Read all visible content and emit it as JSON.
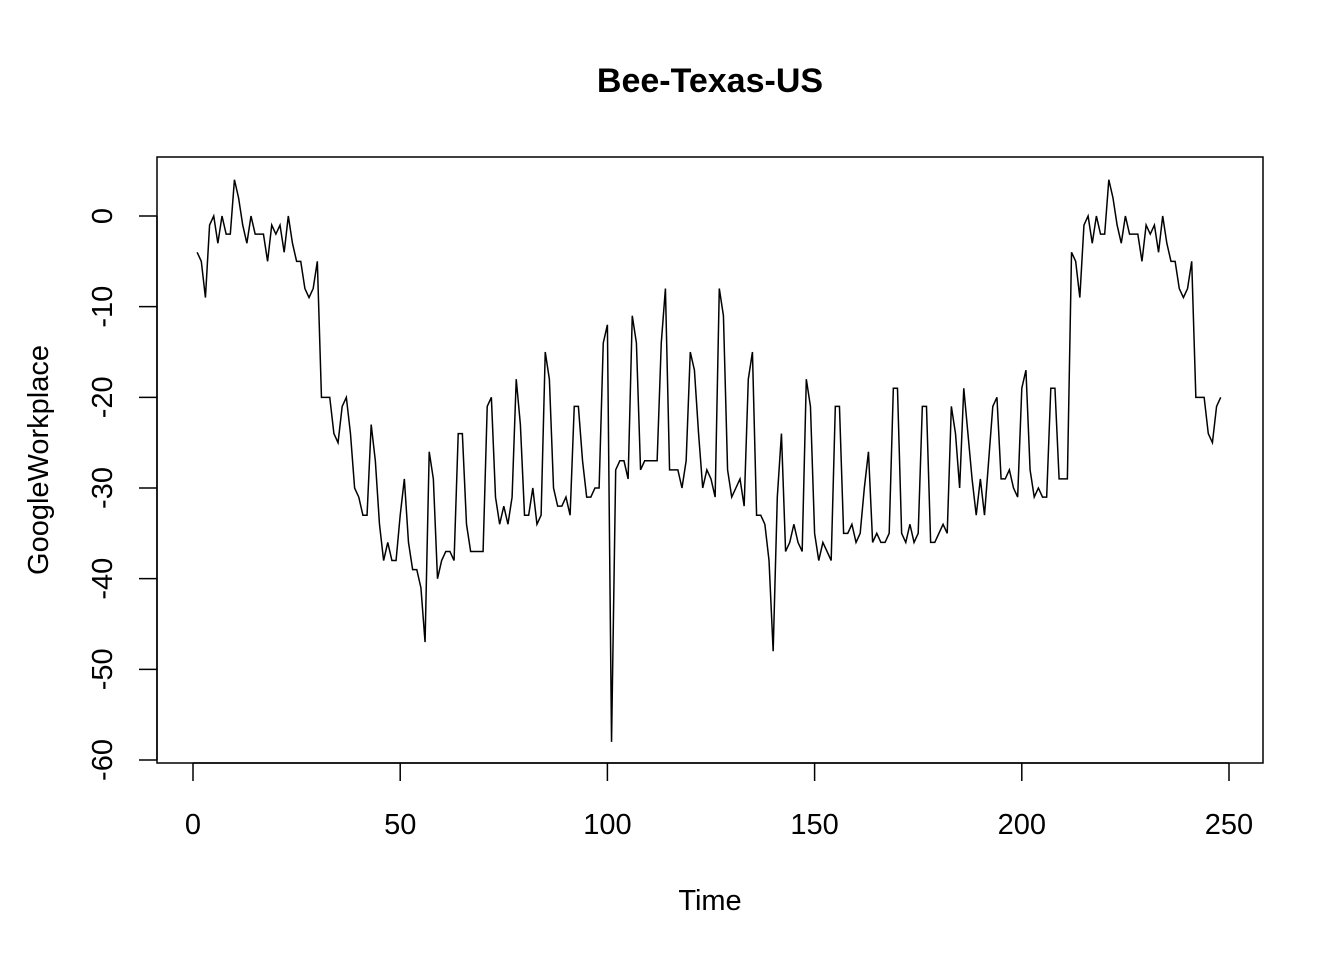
{
  "chart_data": {
    "type": "line",
    "title": "Bee-Texas-US",
    "xlabel": "Time",
    "ylabel": "GoogleWorkplace",
    "xlim": [
      0,
      250
    ],
    "ylim": [
      -60,
      4
    ],
    "x_ticks": [
      0,
      50,
      100,
      150,
      200,
      250
    ],
    "y_ticks": [
      0,
      -10,
      -20,
      -30,
      -40,
      -50,
      -60
    ],
    "grid": false,
    "series": [
      {
        "color": "#000000",
        "x_start": 1,
        "values": [
          -4,
          -5,
          -9,
          -1,
          0,
          -3,
          0,
          -2,
          -2,
          4,
          2,
          -1,
          -3,
          0,
          -2,
          -2,
          -2,
          -5,
          -1,
          -2,
          -1,
          -4,
          0,
          -3,
          -5,
          -5,
          -8,
          -9,
          -8,
          -5,
          -20,
          -20,
          -20,
          -24,
          -25,
          -21,
          -20,
          -24,
          -30,
          -31,
          -33,
          -33,
          -23,
          -27,
          -34,
          -38,
          -36,
          -38,
          -38,
          -33,
          -29,
          -36,
          -39,
          -39,
          -41,
          -47,
          -26,
          -29,
          -40,
          -38,
          -37,
          -37,
          -38,
          -24,
          -24,
          -34,
          -37,
          -37,
          -37,
          -37,
          -21,
          -20,
          -31,
          -34,
          -32,
          -34,
          -31,
          -18,
          -23,
          -33,
          -33,
          -30,
          -34,
          -33,
          -15,
          -18,
          -30,
          -32,
          -32,
          -31,
          -33,
          -21,
          -21,
          -27,
          -31,
          -31,
          -30,
          -30,
          -14,
          -12,
          -58,
          -28,
          -27,
          -27,
          -29,
          -11,
          -14,
          -28,
          -27,
          -27,
          -27,
          -27,
          -14,
          -8,
          -28,
          -28,
          -28,
          -30,
          -27,
          -15,
          -17,
          -24,
          -30,
          -28,
          -29,
          -31,
          -8,
          -11,
          -28,
          -31,
          -30,
          -29,
          -32,
          -18,
          -15,
          -33,
          -33,
          -34,
          -38,
          -48,
          -31,
          -24,
          -37,
          -36,
          -34,
          -36,
          -37,
          -18,
          -21,
          -35,
          -38,
          -36,
          -37,
          -38,
          -21,
          -21,
          -35,
          -35,
          -34,
          -36,
          -35,
          -30,
          -26,
          -36,
          -35,
          -36,
          -36,
          -35,
          -19,
          -19,
          -35,
          -36,
          -34,
          -36,
          -35,
          -21,
          -21,
          -36,
          -36,
          -35,
          -34,
          -35,
          -21,
          -24,
          -30,
          -19,
          -24,
          -29,
          -33,
          -29,
          -33,
          -27,
          -21,
          -20,
          -29,
          -29,
          -28,
          -30,
          -31,
          -19,
          -17,
          -28,
          -31,
          -30,
          -31,
          -31,
          -19,
          -19,
          -29,
          -29,
          -29,
          -4,
          -5,
          -9,
          -1,
          0,
          -3,
          0,
          -2,
          -2,
          4,
          2,
          -1,
          -3,
          0,
          -2,
          -2,
          -2,
          -5,
          -1,
          -2,
          -1,
          -4,
          0,
          -3,
          -5,
          -5,
          -8,
          -9,
          -8,
          -5,
          -20,
          -20,
          -20,
          -24,
          -25,
          -21,
          -20
        ]
      }
    ]
  }
}
